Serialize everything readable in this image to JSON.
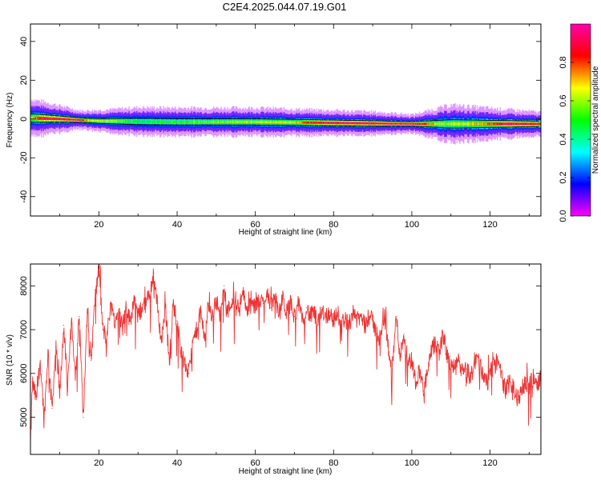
{
  "title": "C2E4.2025.044.07.19.G01",
  "chart_data": [
    {
      "type": "heatmap",
      "xlabel": "Height of straight line (km)",
      "ylabel": "Frequency (Hz)",
      "xlim": [
        2.5,
        133
      ],
      "ylim": [
        -50,
        49
      ],
      "xticks": [
        20,
        40,
        60,
        80,
        100,
        120
      ],
      "yticks": [
        40,
        20,
        0,
        -20,
        -40
      ],
      "colorbar": {
        "label": "Normalized spectral amplitude",
        "range": [
          0,
          1
        ],
        "ticks": [
          0.0,
          0.2,
          0.4,
          0.6,
          0.8
        ],
        "colormap": [
          "#ff00ff",
          "#0000ff",
          "#00ffff",
          "#00ff00",
          "#ffff00",
          "#ff0000",
          "#ff00aa"
        ]
      },
      "band_center_hz": [
        [
          3,
          0.5
        ],
        [
          10,
          0
        ],
        [
          20,
          -1
        ],
        [
          40,
          -1.5
        ],
        [
          60,
          -1.5
        ],
        [
          80,
          -2
        ],
        [
          100,
          -2.5
        ],
        [
          120,
          -2.5
        ],
        [
          133,
          -2.5
        ]
      ],
      "band_halfwidth_hz": [
        [
          3,
          4
        ],
        [
          15,
          2
        ],
        [
          30,
          3
        ],
        [
          60,
          3
        ],
        [
          90,
          2.5
        ],
        [
          100,
          2
        ],
        [
          110,
          4
        ],
        [
          125,
          3
        ],
        [
          133,
          2.5
        ]
      ],
      "band_peak_amplitude": [
        [
          3,
          0.7
        ],
        [
          5,
          0.95
        ],
        [
          14,
          0.95
        ],
        [
          18,
          0.7
        ],
        [
          30,
          0.5
        ],
        [
          50,
          0.6
        ],
        [
          70,
          0.7
        ],
        [
          78,
          0.98
        ],
        [
          100,
          0.98
        ],
        [
          108,
          0.6
        ],
        [
          118,
          0.75
        ],
        [
          125,
          0.98
        ],
        [
          133,
          0.9
        ]
      ]
    },
    {
      "type": "line",
      "xlabel": "Height of straight line (km)",
      "ylabel": "SNR (10 * v/v)",
      "xlim": [
        2.5,
        133
      ],
      "ylim": [
        4150,
        8500
      ],
      "xticks": [
        20,
        40,
        60,
        80,
        100,
        120
      ],
      "yticks": [
        8000,
        7000,
        6000,
        5000
      ],
      "line_color": "#ee3333",
      "series": [
        {
          "points": [
            [
              2.5,
              4300
            ],
            [
              3,
              5800
            ],
            [
              4,
              5400
            ],
            [
              5,
              6300
            ],
            [
              6,
              5000
            ],
            [
              7,
              6500
            ],
            [
              8,
              5200
            ],
            [
              9,
              6600
            ],
            [
              10,
              5500
            ],
            [
              11,
              7100
            ],
            [
              12,
              5600
            ],
            [
              13,
              7200
            ],
            [
              14,
              6000
            ],
            [
              15,
              7300
            ],
            [
              16,
              5000
            ],
            [
              17,
              7400
            ],
            [
              18,
              6300
            ],
            [
              19,
              7700
            ],
            [
              20,
              8400
            ],
            [
              21,
              7000
            ],
            [
              22,
              6800
            ],
            [
              23,
              7600
            ],
            [
              24,
              7200
            ],
            [
              25,
              7400
            ],
            [
              26,
              7100
            ],
            [
              27,
              7500
            ],
            [
              28,
              7200
            ],
            [
              29,
              7700
            ],
            [
              30,
              7300
            ],
            [
              31,
              7500
            ],
            [
              32,
              7600
            ],
            [
              33,
              7800
            ],
            [
              34,
              8300
            ],
            [
              35,
              7500
            ],
            [
              36,
              6700
            ],
            [
              37,
              7600
            ],
            [
              38,
              6200
            ],
            [
              39,
              7600
            ],
            [
              40,
              7200
            ],
            [
              41,
              6500
            ],
            [
              42,
              6200
            ],
            [
              43,
              6000
            ],
            [
              44,
              6700
            ],
            [
              45,
              7000
            ],
            [
              46,
              7400
            ],
            [
              47,
              6800
            ],
            [
              48,
              7600
            ],
            [
              49,
              7300
            ],
            [
              50,
              7700
            ],
            [
              51,
              7300
            ],
            [
              52,
              8000
            ],
            [
              53,
              7400
            ],
            [
              54,
              7700
            ],
            [
              55,
              7500
            ],
            [
              56,
              7600
            ],
            [
              57,
              7800
            ],
            [
              58,
              7400
            ],
            [
              59,
              7600
            ],
            [
              60,
              7500
            ],
            [
              61,
              7700
            ],
            [
              62,
              7600
            ],
            [
              63,
              7900
            ],
            [
              64,
              7500
            ],
            [
              65,
              7800
            ],
            [
              66,
              7300
            ],
            [
              67,
              7700
            ],
            [
              68,
              7400
            ],
            [
              69,
              7600
            ],
            [
              70,
              7300
            ],
            [
              71,
              7600
            ],
            [
              72,
              7200
            ],
            [
              73,
              7500
            ],
            [
              74,
              7300
            ],
            [
              75,
              7400
            ],
            [
              76,
              7100
            ],
            [
              77,
              7500
            ],
            [
              78,
              7300
            ],
            [
              79,
              7400
            ],
            [
              80,
              7200
            ],
            [
              81,
              7400
            ],
            [
              82,
              7100
            ],
            [
              83,
              7300
            ],
            [
              84,
              7000
            ],
            [
              85,
              7500
            ],
            [
              86,
              7200
            ],
            [
              87,
              7300
            ],
            [
              88,
              7100
            ],
            [
              89,
              7300
            ],
            [
              90,
              7200
            ],
            [
              91,
              6900
            ],
            [
              92,
              6800
            ],
            [
              93,
              7300
            ],
            [
              94,
              6600
            ],
            [
              95,
              6100
            ],
            [
              96,
              7300
            ],
            [
              97,
              6400
            ],
            [
              98,
              6900
            ],
            [
              99,
              6300
            ],
            [
              100,
              6300
            ],
            [
              101,
              5800
            ],
            [
              102,
              6100
            ],
            [
              103,
              5600
            ],
            [
              104,
              6000
            ],
            [
              105,
              6500
            ],
            [
              106,
              6700
            ],
            [
              107,
              6500
            ],
            [
              108,
              6900
            ],
            [
              109,
              6400
            ],
            [
              110,
              6200
            ],
            [
              111,
              6100
            ],
            [
              112,
              6300
            ],
            [
              113,
              6000
            ],
            [
              114,
              6100
            ],
            [
              115,
              5900
            ],
            [
              116,
              6200
            ],
            [
              117,
              6400
            ],
            [
              118,
              6000
            ],
            [
              119,
              5900
            ],
            [
              120,
              6000
            ],
            [
              121,
              6200
            ],
            [
              122,
              6300
            ],
            [
              123,
              5900
            ],
            [
              124,
              5600
            ],
            [
              125,
              5800
            ],
            [
              126,
              5700
            ],
            [
              127,
              5400
            ],
            [
              128,
              5600
            ],
            [
              129,
              5800
            ],
            [
              130,
              5700
            ],
            [
              131,
              5900
            ],
            [
              132,
              5800
            ],
            [
              133,
              5900
            ]
          ]
        }
      ]
    }
  ]
}
